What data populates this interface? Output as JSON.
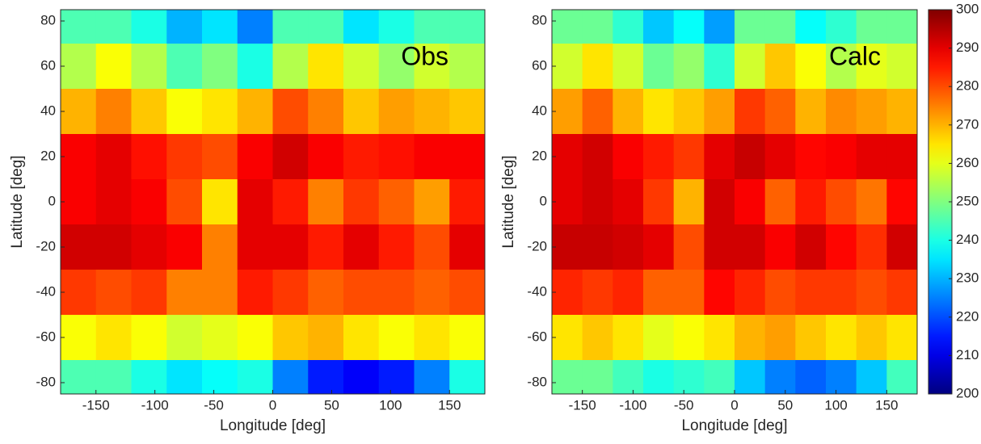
{
  "chart_data": [
    {
      "type": "heatmap",
      "annotation": "Obs",
      "x_label": "Longitude [deg]",
      "y_label": "Latitude [deg]",
      "x": [
        -165,
        -135,
        -105,
        -75,
        -45,
        -15,
        15,
        45,
        75,
        105,
        135,
        165
      ],
      "y": [
        80,
        60,
        40,
        20,
        0,
        -20,
        -40,
        -60,
        -80
      ],
      "values": [
        [
          245,
          245,
          240,
          230,
          235,
          225,
          245,
          245,
          235,
          240,
          245,
          245
        ],
        [
          255,
          262,
          255,
          245,
          250,
          240,
          255,
          265,
          258,
          252,
          258,
          255
        ],
        [
          270,
          275,
          268,
          262,
          265,
          270,
          280,
          275,
          268,
          272,
          270,
          268
        ],
        [
          288,
          290,
          286,
          282,
          280,
          288,
          292,
          288,
          285,
          286,
          288,
          288
        ],
        [
          288,
          290,
          288,
          280,
          265,
          290,
          285,
          275,
          282,
          278,
          272,
          285
        ],
        [
          292,
          292,
          290,
          288,
          275,
          290,
          290,
          285,
          290,
          285,
          280,
          290
        ],
        [
          282,
          280,
          282,
          275,
          275,
          285,
          282,
          278,
          280,
          280,
          278,
          280
        ],
        [
          262,
          265,
          262,
          258,
          260,
          262,
          268,
          270,
          265,
          262,
          265,
          262
        ],
        [
          245,
          245,
          240,
          235,
          238,
          240,
          225,
          215,
          212,
          215,
          225,
          240
        ]
      ],
      "xlim": [
        -180,
        180
      ],
      "ylim": [
        -85,
        85
      ],
      "xticks": [
        -150,
        -100,
        -50,
        0,
        50,
        100,
        150
      ],
      "yticks": [
        -80,
        -60,
        -40,
        -20,
        0,
        20,
        40,
        60,
        80
      ],
      "colormap": "jet",
      "clim": [
        200,
        300
      ]
    },
    {
      "type": "heatmap",
      "annotation": "Calc",
      "x_label": "Longitude [deg]",
      "y_label": "Latitude [deg]",
      "x": [
        -165,
        -135,
        -105,
        -75,
        -45,
        -15,
        15,
        45,
        75,
        105,
        135,
        165
      ],
      "y": [
        80,
        60,
        40,
        20,
        0,
        -20,
        -40,
        -60,
        -80
      ],
      "values": [
        [
          248,
          248,
          242,
          232,
          238,
          228,
          248,
          248,
          238,
          242,
          248,
          248
        ],
        [
          258,
          265,
          258,
          248,
          252,
          242,
          258,
          268,
          262,
          255,
          260,
          258
        ],
        [
          272,
          278,
          270,
          265,
          268,
          272,
          282,
          278,
          270,
          274,
          272,
          270
        ],
        [
          290,
          292,
          288,
          285,
          282,
          290,
          293,
          290,
          287,
          288,
          290,
          290
        ],
        [
          290,
          292,
          290,
          282,
          270,
          292,
          288,
          278,
          285,
          280,
          276,
          287
        ],
        [
          293,
          293,
          292,
          290,
          280,
          292,
          292,
          288,
          292,
          287,
          283,
          292
        ],
        [
          284,
          282,
          284,
          278,
          278,
          287,
          284,
          280,
          282,
          282,
          280,
          282
        ],
        [
          265,
          268,
          265,
          260,
          262,
          265,
          270,
          272,
          268,
          265,
          268,
          265
        ],
        [
          248,
          248,
          244,
          240,
          242,
          244,
          232,
          225,
          222,
          225,
          232,
          244
        ]
      ],
      "xlim": [
        -180,
        180
      ],
      "ylim": [
        -85,
        85
      ],
      "xticks": [
        -150,
        -100,
        -50,
        0,
        50,
        100,
        150
      ],
      "yticks": [
        -80,
        -60,
        -40,
        -20,
        0,
        20,
        40,
        60,
        80
      ],
      "colormap": "jet",
      "clim": [
        200,
        300
      ],
      "colorbar": {
        "ticks": [
          200,
          210,
          220,
          230,
          240,
          250,
          260,
          270,
          280,
          290,
          300
        ]
      }
    }
  ]
}
